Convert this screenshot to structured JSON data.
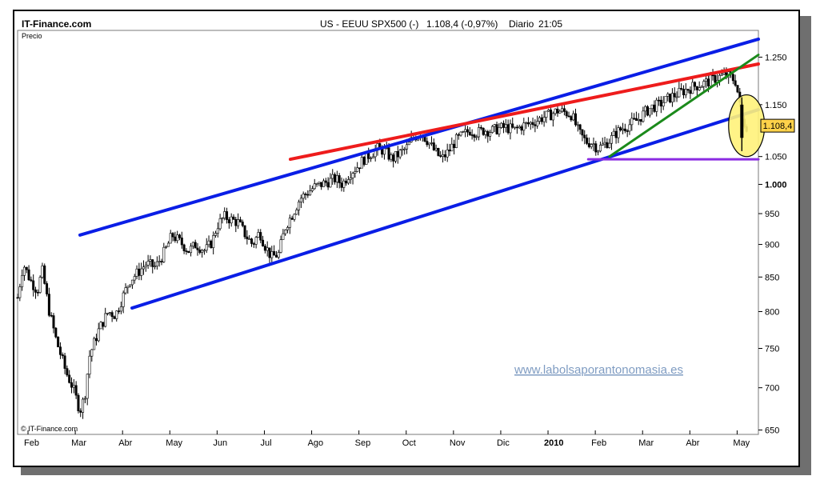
{
  "header": {
    "brand": "IT-Finance.com",
    "instrument": "US - EEUU SPX500 (-)",
    "quote": "1.108,4 (-0,97%)",
    "period": "Diario",
    "time": "21:05"
  },
  "footer": {
    "copyright": "© IT-Finance.com",
    "watermark": "www.labolsaporantonomasia.es"
  },
  "colors": {
    "candle": "#000000",
    "channel": "#0a1ee6",
    "resistance": "#ee1c1c",
    "support_trend": "#1b8a1b",
    "support_level": "#8a2be2",
    "highlight": "#fff27a",
    "price_badge": "#ffd24a"
  },
  "chart_data": {
    "type": "candlestick",
    "ylabel": "Precio",
    "y_ticks": [
      {
        "value": 650,
        "label": "650"
      },
      {
        "value": 700,
        "label": "700"
      },
      {
        "value": 750,
        "label": "750"
      },
      {
        "value": 800,
        "label": "800"
      },
      {
        "value": 850,
        "label": "850"
      },
      {
        "value": 900,
        "label": "900"
      },
      {
        "value": 950,
        "label": "950"
      },
      {
        "value": 1000,
        "label": "1.000"
      },
      {
        "value": 1050,
        "label": "1.050"
      },
      {
        "value": 1150,
        "label": "1.150"
      },
      {
        "value": 1250,
        "label": "1.250"
      }
    ],
    "y_scale": "log",
    "ylim": [
      645,
      1310
    ],
    "x_ticks": [
      {
        "t": 0,
        "label": "Feb"
      },
      {
        "t": 1,
        "label": "Mar"
      },
      {
        "t": 2,
        "label": "Abr"
      },
      {
        "t": 3,
        "label": "May"
      },
      {
        "t": 4,
        "label": "Jun"
      },
      {
        "t": 5,
        "label": "Jul"
      },
      {
        "t": 6,
        "label": "Ago"
      },
      {
        "t": 7,
        "label": "Sep"
      },
      {
        "t": 8,
        "label": "Oct"
      },
      {
        "t": 9,
        "label": "Nov"
      },
      {
        "t": 10,
        "label": "Dic"
      },
      {
        "t": 11,
        "label": "2010"
      },
      {
        "t": 12,
        "label": "Feb"
      },
      {
        "t": 13,
        "label": "Mar"
      },
      {
        "t": 14,
        "label": "Abr"
      },
      {
        "t": 15,
        "label": "May"
      }
    ],
    "xlim": [
      -0.22,
      15.45
    ],
    "last_price": {
      "value": 1108.4,
      "label": "1.108,4"
    },
    "price_path": [
      [
        -0.22,
        820
      ],
      [
        -0.1,
        870
      ],
      [
        0.05,
        845
      ],
      [
        0.2,
        830
      ],
      [
        0.3,
        860
      ],
      [
        0.45,
        800
      ],
      [
        0.6,
        760
      ],
      [
        0.8,
        720
      ],
      [
        0.95,
        700
      ],
      [
        1.1,
        672
      ],
      [
        1.2,
        690
      ],
      [
        1.3,
        740
      ],
      [
        1.5,
        775
      ],
      [
        1.7,
        800
      ],
      [
        1.85,
        795
      ],
      [
        2.0,
        820
      ],
      [
        2.15,
        845
      ],
      [
        2.3,
        855
      ],
      [
        2.5,
        870
      ],
      [
        2.7,
        865
      ],
      [
        2.9,
        890
      ],
      [
        3.05,
        915
      ],
      [
        3.2,
        905
      ],
      [
        3.4,
        890
      ],
      [
        3.55,
        900
      ],
      [
        3.75,
        890
      ],
      [
        3.9,
        905
      ],
      [
        4.0,
        930
      ],
      [
        4.15,
        945
      ],
      [
        4.3,
        940
      ],
      [
        4.45,
        935
      ],
      [
        4.6,
        915
      ],
      [
        4.75,
        900
      ],
      [
        4.9,
        920
      ],
      [
        5.0,
        900
      ],
      [
        5.15,
        880
      ],
      [
        5.3,
        885
      ],
      [
        5.45,
        930
      ],
      [
        5.6,
        950
      ],
      [
        5.75,
        975
      ],
      [
        5.9,
        985
      ],
      [
        6.05,
        995
      ],
      [
        6.2,
        1000
      ],
      [
        6.35,
        1005
      ],
      [
        6.5,
        1010
      ],
      [
        6.65,
        1000
      ],
      [
        6.8,
        1020
      ],
      [
        6.95,
        1030
      ],
      [
        7.1,
        1045
      ],
      [
        7.25,
        1055
      ],
      [
        7.4,
        1065
      ],
      [
        7.55,
        1060
      ],
      [
        7.7,
        1045
      ],
      [
        7.85,
        1055
      ],
      [
        8.0,
        1065
      ],
      [
        8.15,
        1085
      ],
      [
        8.3,
        1095
      ],
      [
        8.45,
        1080
      ],
      [
        8.6,
        1060
      ],
      [
        8.75,
        1045
      ],
      [
        8.9,
        1060
      ],
      [
        9.05,
        1080
      ],
      [
        9.2,
        1090
      ],
      [
        9.35,
        1100
      ],
      [
        9.5,
        1095
      ],
      [
        9.65,
        1100
      ],
      [
        9.8,
        1098
      ],
      [
        9.95,
        1103
      ],
      [
        10.1,
        1105
      ],
      [
        10.3,
        1100
      ],
      [
        10.45,
        1108
      ],
      [
        10.6,
        1112
      ],
      [
        10.75,
        1118
      ],
      [
        10.9,
        1125
      ],
      [
        11.05,
        1130
      ],
      [
        11.2,
        1138
      ],
      [
        11.35,
        1135
      ],
      [
        11.5,
        1130
      ],
      [
        11.65,
        1095
      ],
      [
        11.8,
        1078
      ],
      [
        11.95,
        1075
      ],
      [
        12.05,
        1065
      ],
      [
        12.15,
        1070
      ],
      [
        12.3,
        1080
      ],
      [
        12.45,
        1095
      ],
      [
        12.6,
        1105
      ],
      [
        12.75,
        1112
      ],
      [
        12.9,
        1120
      ],
      [
        13.05,
        1135
      ],
      [
        13.2,
        1145
      ],
      [
        13.35,
        1150
      ],
      [
        13.5,
        1160
      ],
      [
        13.65,
        1168
      ],
      [
        13.8,
        1175
      ],
      [
        13.95,
        1182
      ],
      [
        14.1,
        1188
      ],
      [
        14.25,
        1192
      ],
      [
        14.4,
        1198
      ],
      [
        14.55,
        1205
      ],
      [
        14.7,
        1210
      ],
      [
        14.85,
        1208
      ],
      [
        14.97,
        1198
      ],
      [
        15.03,
        1165
      ],
      [
        15.1,
        1120
      ],
      [
        15.2,
        1108
      ]
    ],
    "lines": [
      {
        "name": "upper-channel",
        "color": "channel",
        "width": 4,
        "from": [
          1.1,
          915
        ],
        "to": [
          15.45,
          1290
        ]
      },
      {
        "name": "lower-channel",
        "color": "channel",
        "width": 4,
        "from": [
          2.2,
          805
        ],
        "to": [
          15.45,
          1140
        ]
      },
      {
        "name": "resistance",
        "color": "resistance",
        "width": 4,
        "from": [
          5.55,
          1045
        ],
        "to": [
          15.45,
          1235
        ]
      },
      {
        "name": "support-trend",
        "color": "support_trend",
        "width": 3,
        "from": [
          12.3,
          1050
        ],
        "to": [
          15.45,
          1255
        ]
      },
      {
        "name": "support-level",
        "color": "support_level",
        "width": 3,
        "from": [
          11.85,
          1045
        ],
        "to": [
          15.45,
          1045
        ]
      }
    ],
    "highlight": {
      "name": "drop-ellipse",
      "center": [
        15.2,
        1105
      ],
      "rx_months": 0.38,
      "ry_value_range": [
        1050,
        1170
      ]
    }
  }
}
